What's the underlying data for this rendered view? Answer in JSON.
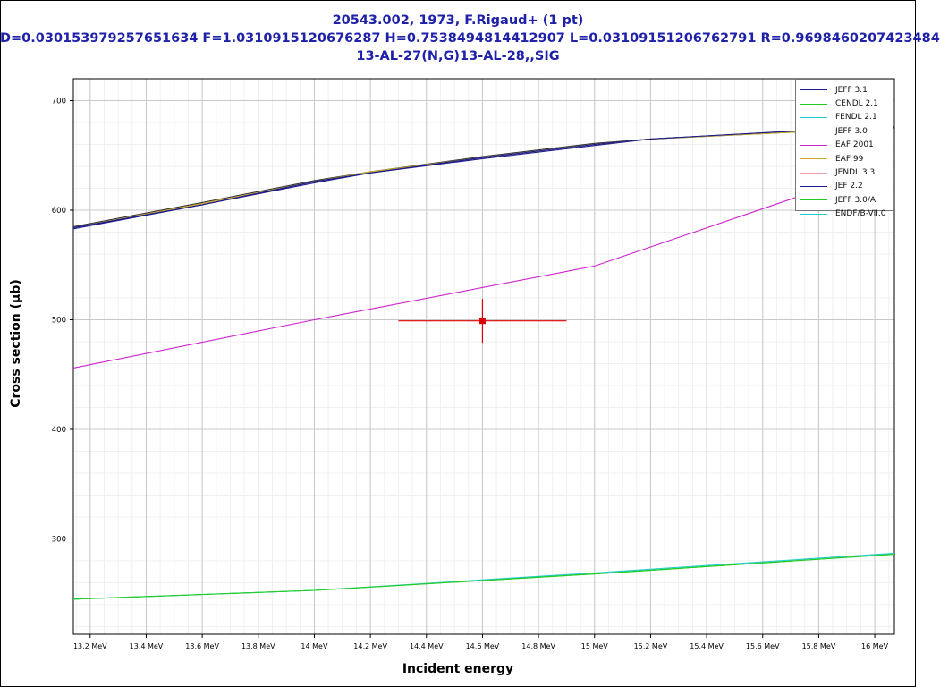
{
  "title": {
    "line1": "20543.002, 1973, F.Rigaud+ (1 pt)",
    "line2": "D=0.030153979257651634 F=1.0310915120676287 H=0.7538494814412907 L=0.03109151206762791 R=0.9698460207423484",
    "line3": "13-AL-27(N,G)13-AL-28,,SIG"
  },
  "chart_data": {
    "type": "line",
    "xlabel": "Incident energy",
    "ylabel": "Cross section (µb)",
    "xlim": [
      13.14,
      16.07
    ],
    "ylim": [
      213,
      720
    ],
    "x_ticks": [
      13.2,
      13.4,
      13.6,
      13.8,
      14.0,
      14.2,
      14.4,
      14.6,
      14.8,
      15.0,
      15.2,
      15.4,
      15.6,
      15.8,
      16.0
    ],
    "x_tick_labels": [
      "13,2 MeV",
      "13,4 MeV",
      "13,6 MeV",
      "13,8 MeV",
      "14 MeV",
      "14,2 MeV",
      "14,4 MeV",
      "14,6 MeV",
      "14,8 MeV",
      "15 MeV",
      "15,2 MeV",
      "15,4 MeV",
      "15,6 MeV",
      "15,8 MeV",
      "16 MeV"
    ],
    "y_ticks": [
      300,
      400,
      500,
      600,
      700
    ],
    "y_tick_labels": [
      "300",
      "400",
      "500",
      "600",
      "700"
    ],
    "grid": true,
    "legend_position": "top-right",
    "series": [
      {
        "name": "JEFF 3.1",
        "color": "#1a1a8c",
        "x": [
          13.14,
          13.6,
          14.0,
          14.2,
          14.6,
          15.0,
          15.2,
          15.7,
          16.07
        ],
        "y": [
          583,
          605,
          625,
          634,
          647,
          659,
          665,
          672,
          676
        ]
      },
      {
        "name": "CENDL 2.1",
        "color": "#22cc22",
        "x": [
          13.14,
          14.0,
          15.0,
          16.07
        ],
        "y": [
          245,
          253,
          268,
          286
        ]
      },
      {
        "name": "FENDL 2.1",
        "color": "#22cccc",
        "x": [
          13.14,
          14.0,
          15.0,
          16.07
        ],
        "y": [
          245,
          253,
          269,
          287
        ]
      },
      {
        "name": "JEFF 3.0",
        "color": "#333333",
        "x": [
          13.14,
          13.6,
          14.0,
          14.2,
          14.6,
          15.0,
          15.2,
          15.7,
          16.07
        ],
        "y": [
          585,
          607,
          627,
          635,
          649,
          661,
          665,
          671,
          675
        ]
      },
      {
        "name": "EAF 2001",
        "color": "#cc22cc",
        "x": [
          13.14,
          14.0,
          15.0,
          15.7,
          16.07
        ],
        "y": [
          456,
          500,
          549,
          610,
          642
        ]
      },
      {
        "name": "EAF 99",
        "color": "#ccaa22",
        "x": [
          13.14,
          13.6,
          14.0,
          14.2,
          14.6,
          15.0,
          15.2,
          15.7,
          16.07
        ],
        "y": [
          584,
          606,
          626,
          635,
          648,
          660,
          665,
          671,
          676
        ]
      },
      {
        "name": "JENDL 3.3",
        "color": "#f0a0a8",
        "x": [],
        "y": []
      },
      {
        "name": "JEF 2.2",
        "color": "#1a1a8c",
        "x": [
          13.14,
          13.6,
          14.0,
          14.2,
          14.6,
          15.0,
          15.2,
          15.7,
          16.07
        ],
        "y": [
          584,
          605,
          626,
          634,
          648,
          660,
          665,
          672,
          676
        ]
      },
      {
        "name": "JEFF 3.0/A",
        "color": "#22cc22",
        "x": [
          13.14,
          14.0,
          15.0,
          16.07
        ],
        "y": [
          245,
          253,
          268,
          286
        ]
      },
      {
        "name": "ENDF/B-VII.0",
        "color": "#22cccc",
        "x": [],
        "y": []
      }
    ],
    "measurement": {
      "x": 14.6,
      "y": 499,
      "x_err": [
        14.3,
        14.9
      ],
      "y_err": [
        479,
        519
      ],
      "color": "#dd0000"
    }
  }
}
